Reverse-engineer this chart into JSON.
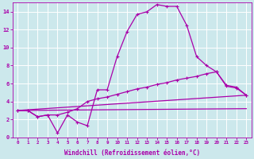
{
  "background_color": "#cce8ec",
  "grid_color": "#ffffff",
  "line_color": "#aa00aa",
  "x_min": 0,
  "x_max": 23,
  "y_min": 0,
  "y_max": 14,
  "x_ticks": [
    0,
    1,
    2,
    3,
    4,
    5,
    6,
    7,
    8,
    9,
    10,
    11,
    12,
    13,
    14,
    15,
    16,
    17,
    18,
    19,
    20,
    21,
    22,
    23
  ],
  "y_ticks": [
    0,
    2,
    4,
    6,
    8,
    10,
    12,
    14
  ],
  "xlabel": "Windchill (Refroidissement éolien,°C)",
  "series1_x": [
    0,
    1,
    2,
    3,
    4,
    5,
    6,
    7,
    8,
    9,
    10,
    11,
    12,
    13,
    14,
    15,
    16,
    17,
    18,
    19,
    20,
    21,
    22,
    23
  ],
  "series1_y": [
    3.0,
    3.0,
    2.3,
    2.5,
    0.5,
    2.5,
    1.7,
    1.3,
    5.3,
    5.3,
    9.0,
    11.8,
    13.7,
    14.0,
    14.8,
    14.6,
    14.6,
    12.5,
    9.0,
    8.0,
    7.3,
    5.7,
    5.5,
    4.7
  ],
  "series2_x": [
    0,
    1,
    2,
    3,
    4,
    5,
    6,
    7,
    8,
    9,
    10,
    11,
    12,
    13,
    14,
    15,
    16,
    17,
    18,
    19,
    20,
    21,
    22,
    23
  ],
  "series2_y": [
    3.0,
    3.0,
    2.3,
    2.5,
    2.5,
    2.8,
    3.2,
    4.0,
    4.3,
    4.5,
    4.8,
    5.1,
    5.4,
    5.6,
    5.9,
    6.1,
    6.4,
    6.6,
    6.8,
    7.1,
    7.3,
    5.8,
    5.6,
    4.7
  ],
  "series3_x": [
    0,
    23
  ],
  "series3_y": [
    3.0,
    4.7
  ],
  "series4_x": [
    0,
    23
  ],
  "series4_y": [
    3.0,
    3.2
  ]
}
